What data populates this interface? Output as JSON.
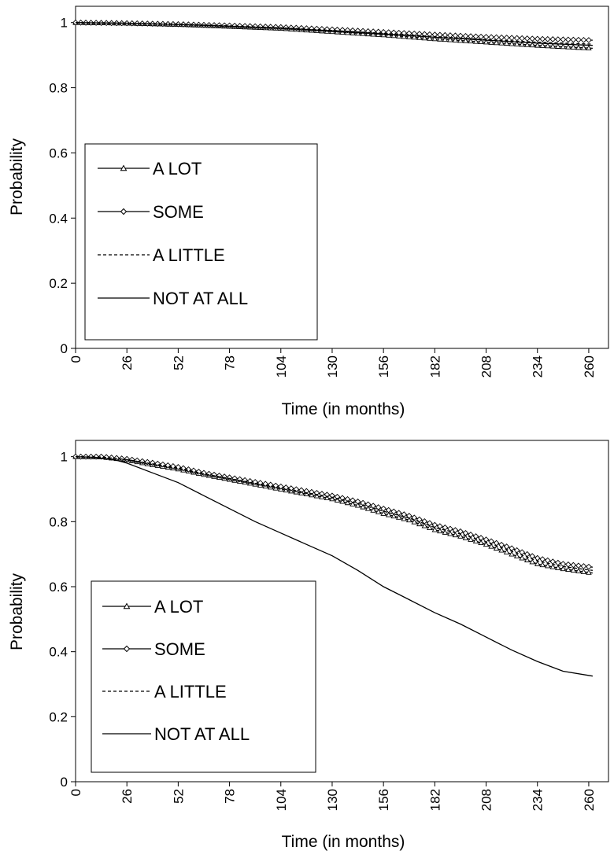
{
  "chart_data": [
    {
      "type": "line",
      "title": "",
      "xlabel": "Time (in months)",
      "ylabel": "Probability",
      "xlim": [
        0,
        270
      ],
      "ylim": [
        0,
        1.05
      ],
      "xticks": [
        "0",
        "26",
        "52",
        "78",
        "104",
        "130",
        "156",
        "182",
        "208",
        "234",
        "260"
      ],
      "yticks": [
        "0",
        "0.2",
        "0.4",
        "0.6",
        "0.8",
        "1"
      ],
      "legend_position": "center-left",
      "legend": [
        "A LOT",
        "SOME",
        "A LITTLE",
        "NOT AT ALL"
      ],
      "series": [
        {
          "name": "A LOT",
          "marker": "triangle",
          "dash": "solid",
          "x": [
            0,
            26,
            52,
            78,
            104,
            130,
            156,
            182,
            208,
            234,
            262
          ],
          "y": [
            1.0,
            0.998,
            0.994,
            0.988,
            0.982,
            0.972,
            0.962,
            0.95,
            0.94,
            0.93,
            0.921
          ]
        },
        {
          "name": "SOME",
          "marker": "diamond",
          "dash": "solid",
          "x": [
            0,
            26,
            52,
            78,
            104,
            130,
            156,
            182,
            208,
            234,
            262
          ],
          "y": [
            1.0,
            0.998,
            0.995,
            0.991,
            0.986,
            0.979,
            0.971,
            0.963,
            0.956,
            0.95,
            0.946
          ]
        },
        {
          "name": "A LITTLE",
          "marker": "none",
          "dash": "dashed",
          "x": [
            0,
            26,
            52,
            78,
            104,
            130,
            156,
            182,
            208,
            234,
            262
          ],
          "y": [
            1.0,
            0.998,
            0.995,
            0.99,
            0.984,
            0.976,
            0.967,
            0.957,
            0.948,
            0.94,
            0.934
          ]
        },
        {
          "name": "NOT AT ALL",
          "marker": "none",
          "dash": "solid",
          "x": [
            0,
            26,
            52,
            78,
            104,
            130,
            156,
            182,
            208,
            234,
            262
          ],
          "y": [
            1.0,
            0.998,
            0.994,
            0.989,
            0.983,
            0.975,
            0.965,
            0.955,
            0.946,
            0.937,
            0.93
          ]
        }
      ]
    },
    {
      "type": "line",
      "title": "",
      "xlabel": "Time (in months)",
      "ylabel": "Probability",
      "xlim": [
        0,
        270
      ],
      "ylim": [
        0,
        1.05
      ],
      "xticks": [
        "0",
        "26",
        "52",
        "78",
        "104",
        "130",
        "156",
        "182",
        "208",
        "234",
        "260"
      ],
      "yticks": [
        "0",
        "0.2",
        "0.4",
        "0.6",
        "0.8",
        "1"
      ],
      "legend_position": "center-left",
      "legend": [
        "A LOT",
        "SOME",
        "A LITTLE",
        "NOT AT ALL"
      ],
      "series": [
        {
          "name": "A LOT",
          "marker": "triangle",
          "dash": "solid",
          "x": [
            0,
            13,
            26,
            39,
            52,
            65,
            78,
            91,
            104,
            117,
            130,
            143,
            156,
            169,
            182,
            195,
            208,
            221,
            234,
            247,
            262
          ],
          "y": [
            1.0,
            0.999,
            0.99,
            0.975,
            0.962,
            0.945,
            0.93,
            0.915,
            0.9,
            0.885,
            0.87,
            0.85,
            0.825,
            0.805,
            0.775,
            0.755,
            0.73,
            0.7,
            0.67,
            0.655,
            0.642
          ]
        },
        {
          "name": "SOME",
          "marker": "diamond",
          "dash": "solid",
          "x": [
            0,
            13,
            26,
            39,
            52,
            65,
            78,
            91,
            104,
            117,
            130,
            143,
            156,
            169,
            182,
            195,
            208,
            221,
            234,
            247,
            262
          ],
          "y": [
            1.0,
            1.0,
            0.993,
            0.981,
            0.968,
            0.95,
            0.936,
            0.922,
            0.908,
            0.894,
            0.88,
            0.862,
            0.84,
            0.818,
            0.79,
            0.77,
            0.745,
            0.718,
            0.688,
            0.67,
            0.66
          ]
        },
        {
          "name": "A LITTLE",
          "marker": "none",
          "dash": "dashed",
          "x": [
            0,
            13,
            26,
            39,
            52,
            65,
            78,
            91,
            104,
            117,
            130,
            143,
            156,
            169,
            182,
            195,
            208,
            221,
            234,
            247,
            262
          ],
          "y": [
            1.0,
            0.999,
            0.991,
            0.978,
            0.965,
            0.947,
            0.933,
            0.918,
            0.904,
            0.889,
            0.875,
            0.856,
            0.832,
            0.811,
            0.782,
            0.762,
            0.737,
            0.709,
            0.679,
            0.662,
            0.65
          ]
        },
        {
          "name": "NOT AT ALL",
          "marker": "none",
          "dash": "solid",
          "x": [
            0,
            10,
            20,
            26,
            39,
            52,
            65,
            78,
            91,
            104,
            117,
            130,
            143,
            156,
            169,
            182,
            195,
            208,
            221,
            234,
            247,
            262
          ],
          "y": [
            1.0,
            0.998,
            0.99,
            0.98,
            0.95,
            0.92,
            0.88,
            0.84,
            0.8,
            0.765,
            0.73,
            0.695,
            0.65,
            0.6,
            0.56,
            0.52,
            0.485,
            0.445,
            0.405,
            0.37,
            0.34,
            0.325
          ]
        }
      ]
    }
  ]
}
